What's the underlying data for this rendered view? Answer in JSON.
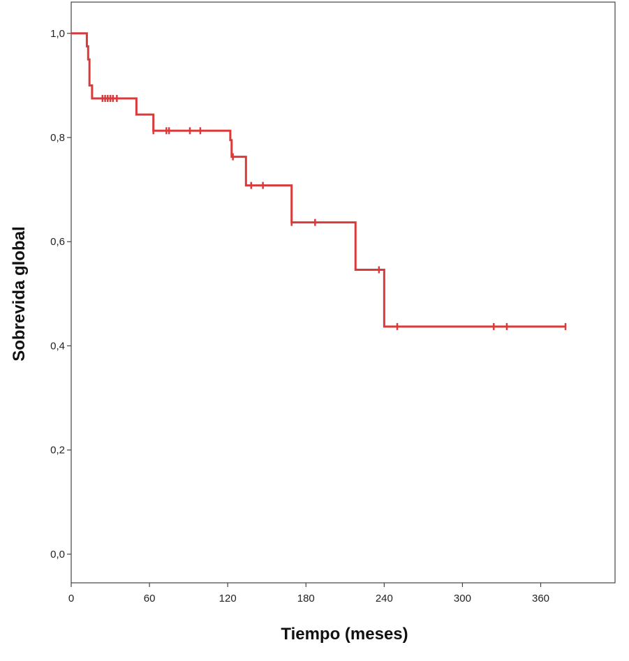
{
  "chart_data": {
    "type": "line",
    "step": true,
    "title": "",
    "xlabel": "Tiempo (meses)",
    "ylabel": "Sobrevida global",
    "xlim": [
      0,
      417
    ],
    "ylim": [
      -0.055,
      1.06
    ],
    "xticks": [
      0,
      60,
      120,
      180,
      240,
      300,
      360
    ],
    "xtick_labels": [
      "0",
      "60",
      "120",
      "180",
      "240",
      "300",
      "360"
    ],
    "yticks": [
      0.0,
      0.2,
      0.4,
      0.6,
      0.8,
      1.0
    ],
    "ytick_labels": [
      "0,0",
      "0,2",
      "0,4",
      "0,6",
      "0,8",
      "1,0"
    ],
    "grid": false,
    "line_color": "#d93a3a",
    "series": [
      {
        "x": [
          0,
          12,
          13,
          14,
          16,
          50,
          63,
          122,
          123,
          134,
          169,
          218,
          240,
          379
        ],
        "y": [
          1.0,
          0.975,
          0.95,
          0.9,
          0.875,
          0.844,
          0.813,
          0.795,
          0.763,
          0.708,
          0.637,
          0.546,
          0.437,
          0.437
        ]
      }
    ],
    "censored": {
      "x": [
        24,
        26,
        28,
        30,
        32,
        35,
        63,
        73,
        75,
        91,
        99,
        124,
        138,
        147,
        169,
        187,
        236,
        250,
        324,
        334,
        379
      ],
      "y": [
        0.875,
        0.875,
        0.875,
        0.875,
        0.875,
        0.875,
        0.813,
        0.813,
        0.813,
        0.813,
        0.813,
        0.763,
        0.708,
        0.708,
        0.637,
        0.637,
        0.546,
        0.437,
        0.437,
        0.437,
        0.437
      ]
    }
  }
}
